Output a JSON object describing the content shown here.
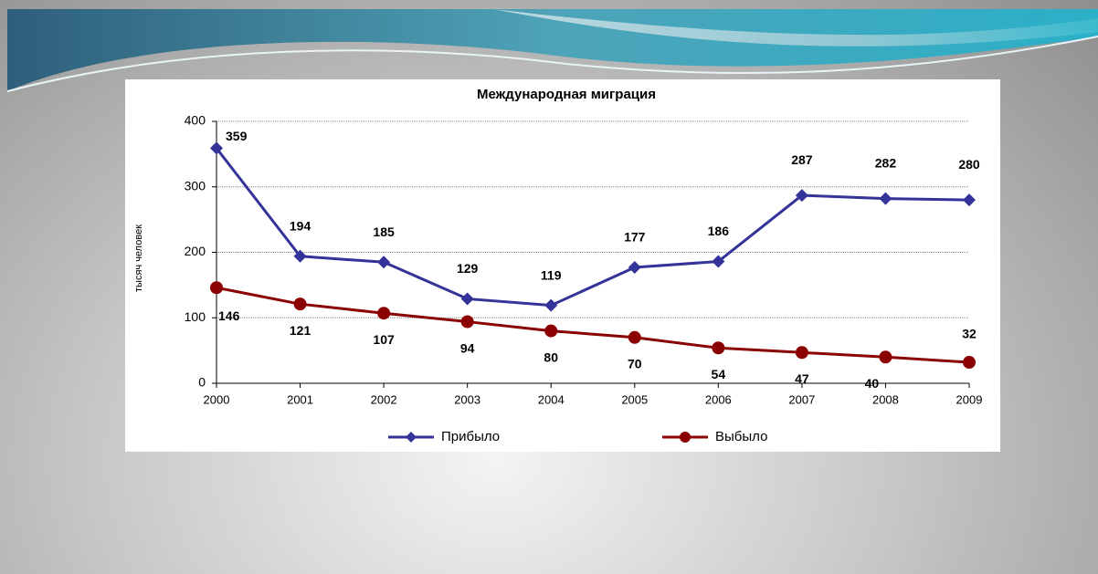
{
  "chart_data": {
    "type": "line",
    "title": "Международная миграция",
    "y_label": "тысяч человек",
    "x": [
      2000,
      2001,
      2002,
      2003,
      2004,
      2005,
      2006,
      2007,
      2008,
      2009
    ],
    "xlim": [
      2000,
      2009
    ],
    "xticks": [
      2000,
      2001,
      2002,
      2003,
      2004,
      2005,
      2006,
      2007,
      2008,
      2009
    ],
    "ylim": [
      0,
      400
    ],
    "yticks": [
      0,
      100,
      200,
      300,
      400
    ],
    "grid": true,
    "legend": "bottom",
    "series": [
      {
        "name": "Прибыло",
        "color": "#333399",
        "marker": "diamond",
        "values": [
          359,
          194,
          185,
          129,
          119,
          177,
          186,
          287,
          282,
          280
        ]
      },
      {
        "name": "Выбыло",
        "color": "#8b0000",
        "marker": "circle",
        "values": [
          146,
          121,
          107,
          94,
          80,
          70,
          54,
          47,
          40,
          32
        ]
      }
    ]
  }
}
